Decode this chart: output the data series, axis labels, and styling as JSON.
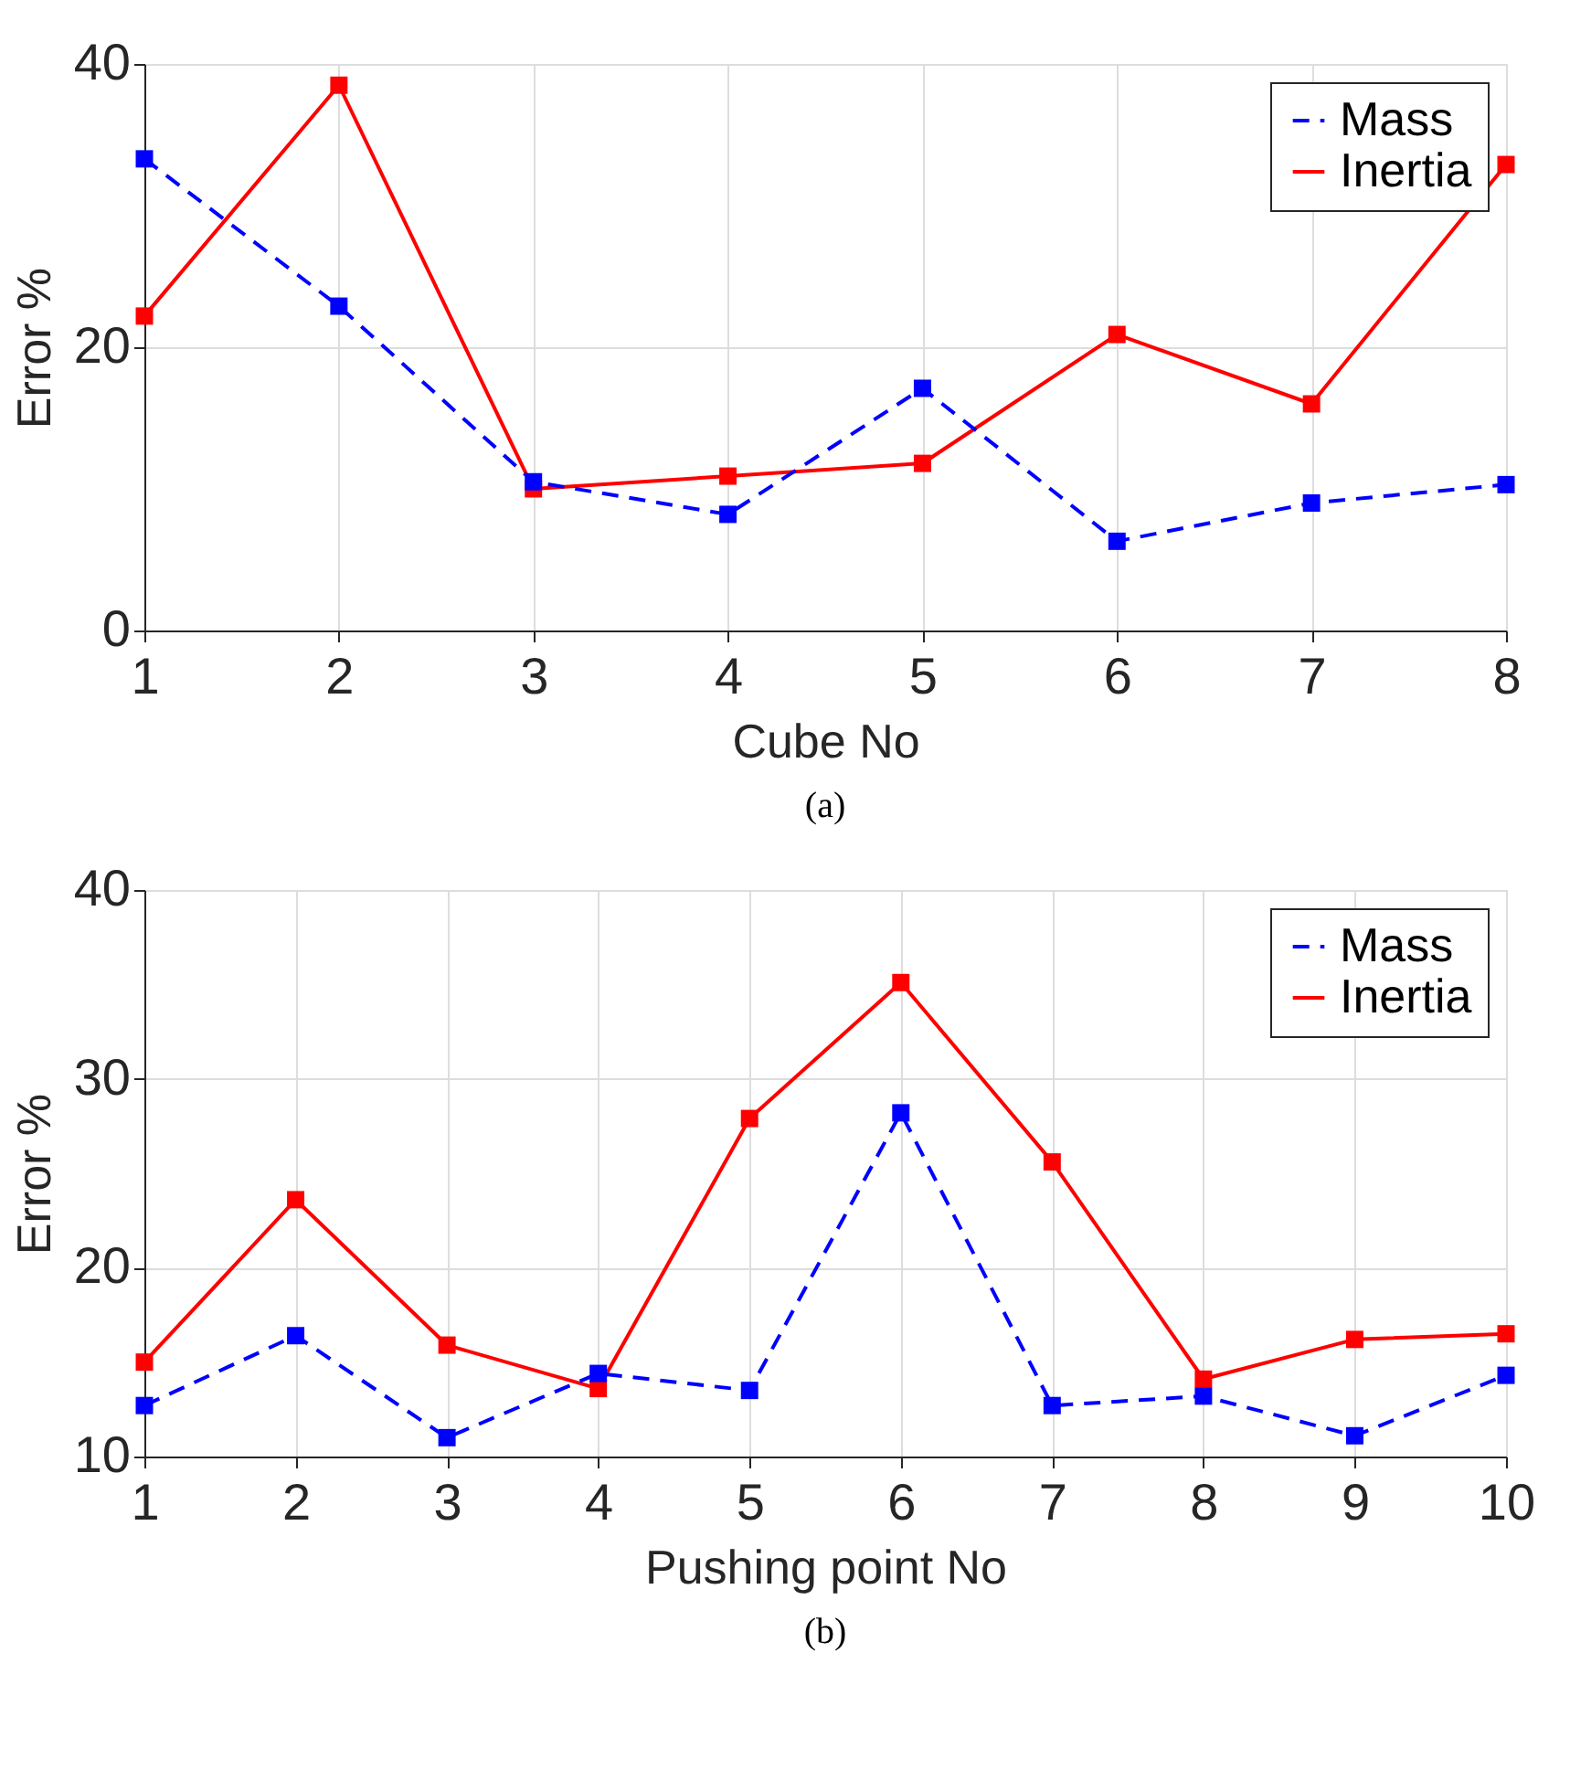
{
  "chart_data": [
    {
      "type": "line",
      "xlabel": "Cube No",
      "ylabel": "Error %",
      "annotations": [
        "(a)"
      ],
      "x": [
        1,
        2,
        3,
        4,
        5,
        6,
        7,
        8
      ],
      "xlim": [
        1,
        8
      ],
      "xticks": [
        1,
        2,
        3,
        4,
        5,
        6,
        7,
        8
      ],
      "ylim": [
        0,
        40
      ],
      "yticks": [
        0,
        20,
        40
      ],
      "grid": true,
      "legend": "top right",
      "marker": "square",
      "series": [
        {
          "name": "Mass",
          "color": "#0000ff",
          "line_style": "dashed",
          "values": [
            33.3,
            22.9,
            10.5,
            8.2,
            17.1,
            6.3,
            9.0,
            10.3
          ]
        },
        {
          "name": "Inertia",
          "color": "#ff0000",
          "line_style": "solid",
          "values": [
            22.2,
            38.5,
            10.0,
            10.9,
            11.8,
            20.9,
            16.0,
            32.9
          ]
        }
      ]
    },
    {
      "type": "line",
      "xlabel": "Pushing point No",
      "ylabel": "Error %",
      "annotations": [
        "(b)"
      ],
      "x": [
        1,
        2,
        3,
        4,
        5,
        6,
        7,
        8,
        9,
        10
      ],
      "xlim": [
        1,
        10
      ],
      "xticks": [
        1,
        2,
        3,
        4,
        5,
        6,
        7,
        8,
        9,
        10
      ],
      "ylim": [
        10,
        40
      ],
      "yticks": [
        10,
        20,
        30,
        40
      ],
      "grid": true,
      "legend": "top right",
      "marker": "square",
      "series": [
        {
          "name": "Mass",
          "color": "#0000ff",
          "line_style": "dashed",
          "values": [
            12.7,
            16.4,
            11.0,
            14.4,
            13.5,
            28.2,
            12.7,
            13.2,
            11.1,
            14.3
          ]
        },
        {
          "name": "Inertia",
          "color": "#ff0000",
          "line_style": "solid",
          "values": [
            15.0,
            23.6,
            15.9,
            13.6,
            27.9,
            35.1,
            25.6,
            14.1,
            16.2,
            16.5
          ]
        }
      ]
    }
  ]
}
